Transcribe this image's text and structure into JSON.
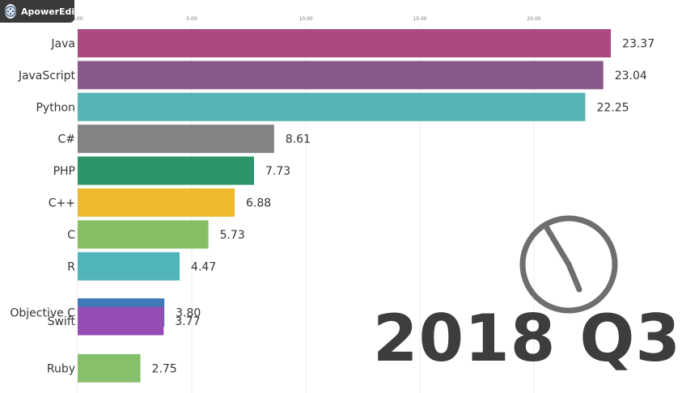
{
  "app": {
    "watermark": "ApowerEdit"
  },
  "period_label": "2018 Q3",
  "icons": {
    "watermark": "film-reel-icon",
    "timer": "clock-icon"
  },
  "chart_data": {
    "type": "bar",
    "orientation": "horizontal",
    "title": "",
    "xlabel": "",
    "ylabel": "",
    "xlim": [
      0,
      23.6
    ],
    "ticks": [
      "0.00",
      "5.00",
      "10.00",
      "15.00",
      "20.00"
    ],
    "grid": true,
    "categories": [
      "Java",
      "JavaScript",
      "Python",
      "C#",
      "PHP",
      "C++",
      "C",
      "R",
      "Objective C",
      "Swift",
      "Ruby"
    ],
    "values": [
      23.37,
      23.04,
      22.25,
      8.61,
      7.73,
      6.88,
      5.73,
      4.47,
      3.8,
      3.77,
      2.75
    ],
    "value_labels": [
      "23.37",
      "23.04",
      "22.25",
      "8.61",
      "7.73",
      "6.88",
      "5.73",
      "4.47",
      "3.80",
      "3.77",
      "2.75"
    ],
    "colors": [
      "#ab4a7e",
      "#875a8a",
      "#56b4b4",
      "#838383",
      "#2d956a",
      "#efb92d",
      "#87c064",
      "#52b4bb",
      "#3e7ab7",
      "#964cb5",
      "#86c06a"
    ]
  }
}
